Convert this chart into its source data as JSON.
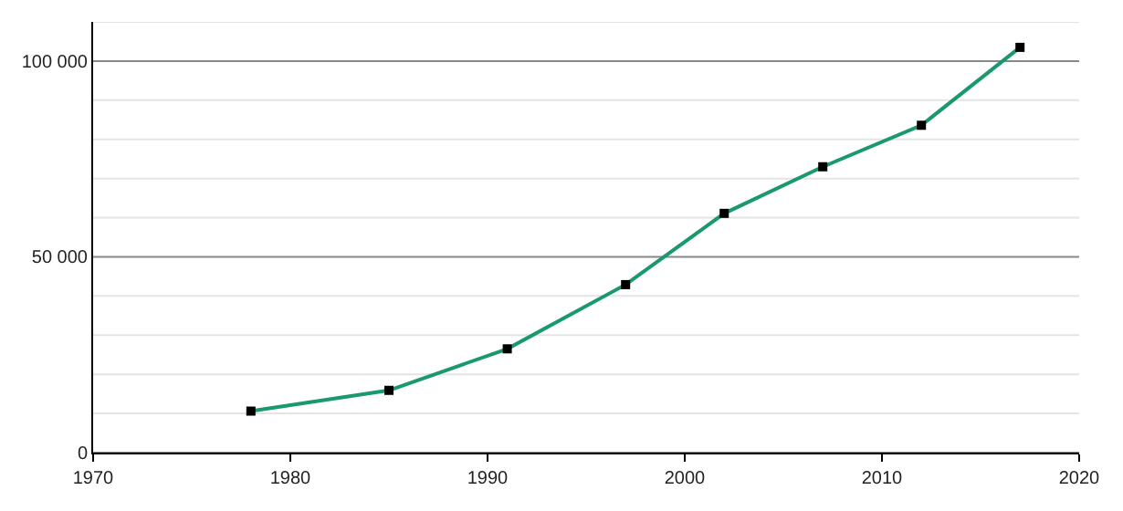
{
  "chart_data": {
    "type": "line",
    "x": [
      1978,
      1985,
      1991,
      1997,
      2002,
      2007,
      2012,
      2017
    ],
    "series": [
      {
        "color": "#1a9870",
        "values": [
          10600,
          15900,
          26500,
          42900,
          61100,
          73000,
          83600,
          103500
        ]
      }
    ],
    "xlim": [
      1970,
      2020
    ],
    "xticks": [
      1970,
      1980,
      1990,
      2000,
      2010,
      2020
    ],
    "ylim": [
      0,
      110000
    ],
    "yticks": [
      {
        "value": 0,
        "label": "0"
      },
      {
        "value": 10000,
        "label": null
      },
      {
        "value": 20000,
        "label": null
      },
      {
        "value": 30000,
        "label": null
      },
      {
        "value": 40000,
        "label": null
      },
      {
        "value": 50000,
        "label": "50 000"
      },
      {
        "value": 60000,
        "label": null
      },
      {
        "value": 70000,
        "label": null
      },
      {
        "value": 80000,
        "label": null
      },
      {
        "value": 90000,
        "label": null
      },
      {
        "value": 100000,
        "label": "100 000"
      },
      {
        "value": 110000,
        "label": null
      }
    ],
    "grid": "y",
    "marker": "square",
    "line_style": "solid"
  }
}
